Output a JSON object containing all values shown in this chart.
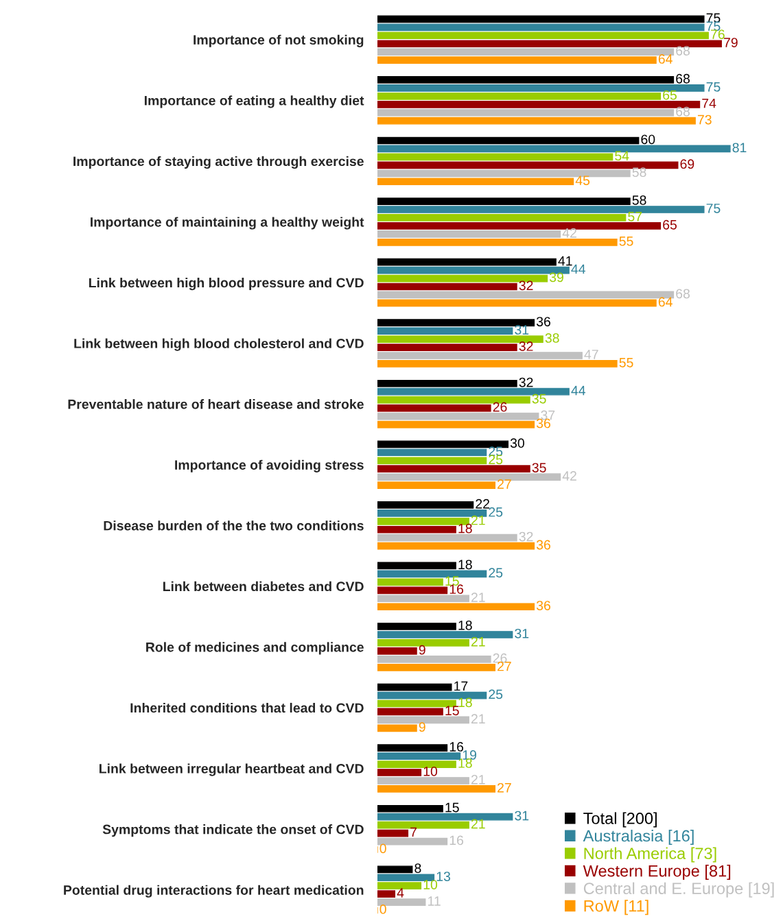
{
  "chart_data": {
    "type": "bar",
    "orientation": "horizontal",
    "data_labels": true,
    "legend": "bottom right",
    "grid": false,
    "categories": [
      "Importance of not smoking",
      "Importance of eating a healthy diet",
      "Importance of staying active through exercise",
      "Importance of maintaining a healthy weight",
      "Link between high blood pressure and CVD",
      "Link between high blood cholesterol and CVD",
      "Preventable nature of heart disease and stroke",
      "Importance of avoiding stress",
      "Disease burden of the the two conditions",
      "Link between diabetes and CVD",
      "Role of medicines and compliance",
      "Inherited conditions that lead to CVD",
      "Link between irregular heartbeat and CVD",
      "Symptoms that indicate the onset of CVD",
      "Potential drug interactions for heart medication"
    ],
    "series": [
      {
        "name": "Total [200]",
        "color": "#000000",
        "values": [
          75,
          68,
          60,
          58,
          41,
          36,
          32,
          30,
          22,
          18,
          18,
          17,
          16,
          15,
          8
        ]
      },
      {
        "name": "Australasia [16]",
        "color": "#31849b",
        "values": [
          75,
          75,
          81,
          75,
          44,
          31,
          44,
          25,
          25,
          25,
          31,
          25,
          19,
          31,
          13
        ]
      },
      {
        "name": "North America [73]",
        "color": "#99cc00",
        "values": [
          76,
          65,
          54,
          57,
          39,
          38,
          35,
          25,
          21,
          15,
          21,
          18,
          18,
          21,
          10
        ]
      },
      {
        "name": "Western Europe [81]",
        "color": "#990000",
        "values": [
          79,
          74,
          69,
          65,
          32,
          32,
          26,
          35,
          18,
          16,
          9,
          15,
          10,
          7,
          4
        ]
      },
      {
        "name": "Central and E. Europe [19]",
        "color": "#c0c0c0",
        "values": [
          68,
          68,
          58,
          42,
          68,
          47,
          37,
          42,
          32,
          21,
          26,
          21,
          21,
          16,
          11
        ]
      },
      {
        "name": "RoW [11]",
        "color": "#ff9900",
        "values": [
          64,
          73,
          45,
          55,
          64,
          55,
          36,
          27,
          36,
          36,
          27,
          9,
          27,
          0,
          0
        ]
      }
    ]
  }
}
